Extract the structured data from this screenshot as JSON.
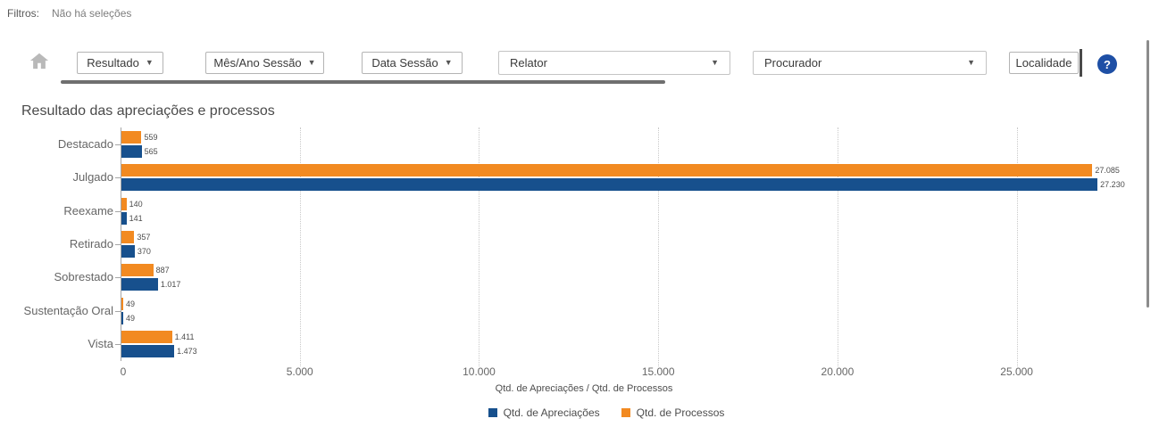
{
  "filters": {
    "label": "Filtros:",
    "value": "Não há seleções"
  },
  "toolbar": {
    "buttons": [
      {
        "label": "Resultado"
      },
      {
        "label": "Mês/Ano Sessão"
      },
      {
        "label": "Data Sessão"
      }
    ],
    "selects": [
      {
        "label": "Relator"
      },
      {
        "label": "Procurador"
      }
    ],
    "localidade_label": "Localidade",
    "help_label": "?",
    "caret_glyph": "▼"
  },
  "colors": {
    "orange": "#F28A21",
    "blue": "#17508D",
    "help_blue": "#1E4FA5",
    "axis": "#A6A6A6",
    "grid": "#C9C9C9",
    "scrollbar": "#6F6F6F"
  },
  "chart_data": {
    "type": "bar",
    "orientation": "horizontal",
    "title": "Resultado das apreciações e processos",
    "categories": [
      "Destacado",
      "Julgado",
      "Reexame",
      "Retirado",
      "Sobrestado",
      "Sustentação Oral",
      "Vista"
    ],
    "series": [
      {
        "name": "Qtd. de Processos",
        "color": "#F28A21",
        "position": "top",
        "values": [
          559,
          27085,
          140,
          357,
          887,
          49,
          1411
        ],
        "labels": [
          "559",
          "27.085",
          "140",
          "357",
          "887",
          "49",
          "1.411"
        ]
      },
      {
        "name": "Qtd. de Apreciações",
        "color": "#17508D",
        "position": "bottom",
        "values": [
          565,
          27230,
          141,
          370,
          1017,
          49,
          1473
        ],
        "labels": [
          "565",
          "27.230",
          "141",
          "370",
          "1.017",
          "49",
          "1.473"
        ]
      }
    ],
    "x_ticks": [
      0,
      5000,
      10000,
      15000,
      20000,
      25000
    ],
    "x_tick_labels": [
      "0",
      "5.000",
      "10.000",
      "15.000",
      "20.000",
      "25.000"
    ],
    "xlim": [
      0,
      27400
    ],
    "xlabel": "Qtd. de Apreciações / Qtd. de Processos",
    "grid": "vertical-dotted",
    "legend_position": "bottom",
    "legend": [
      {
        "name": "Qtd. de Apreciações",
        "color": "#17508D"
      },
      {
        "name": "Qtd. de Processos",
        "color": "#F28A21"
      }
    ]
  }
}
